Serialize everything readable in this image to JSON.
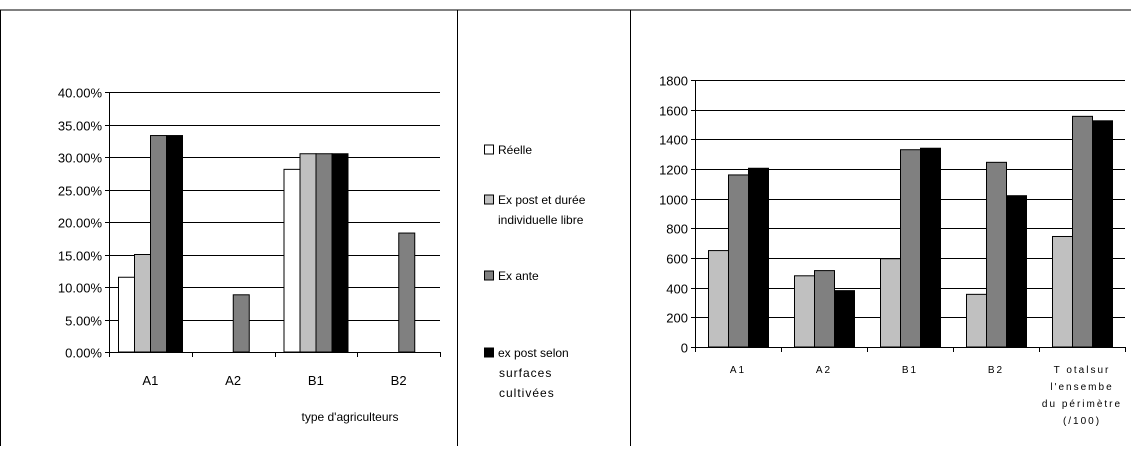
{
  "series_styles": [
    {
      "name": "Réelle",
      "color": "#ffffff"
    },
    {
      "name": "Ex post et durée individuelle libre",
      "color": "#c0c0c0"
    },
    {
      "name": "Ex ante",
      "color": "#808080"
    },
    {
      "name": "ex post selon surfaces cultivées",
      "color": "#000000"
    }
  ],
  "legend": {
    "items": [
      {
        "lines": [
          "Réelle"
        ],
        "color": "#ffffff"
      },
      {
        "lines": [
          "Ex post et durée",
          "individuelle libre"
        ],
        "color": "#c0c0c0"
      },
      {
        "lines": [
          "Ex ante"
        ],
        "color": "#808080"
      },
      {
        "lines": [
          "ex post selon",
          "surfaces",
          "cultivées"
        ],
        "color": "#000000"
      }
    ]
  },
  "chart_data": [
    {
      "type": "bar",
      "categories": [
        "A1",
        "A2",
        "B1",
        "B2"
      ],
      "xlabel": "type d'agriculteurs",
      "ylabel": "",
      "ylim": [
        0,
        0.4
      ],
      "yticks": [
        0,
        0.05,
        0.1,
        0.15,
        0.2,
        0.25,
        0.3,
        0.35,
        0.4
      ],
      "yticklabels": [
        "0.00%",
        "5.00%",
        "10.00%",
        "15.00%",
        "20.00%",
        "25.00%",
        "30.00%",
        "35.00%",
        "40.00%"
      ],
      "grid": true,
      "series": [
        {
          "name": "Réelle",
          "values": [
            0.115,
            0,
            0.281,
            0
          ]
        },
        {
          "name": "Ex post et durée individuelle libre",
          "values": [
            0.15,
            0,
            0.305,
            0
          ]
        },
        {
          "name": "Ex ante",
          "values": [
            0.333,
            0.088,
            0.305,
            0.183
          ]
        },
        {
          "name": "ex post selon surfaces cultivées",
          "values": [
            0.333,
            0,
            0.305,
            0
          ]
        }
      ]
    },
    {
      "type": "bar",
      "categories": [
        "A1",
        "A2",
        "B1",
        "B2",
        "Totalsur l'ensemble du périmètre (/100)"
      ],
      "category_lines": [
        [
          "A1"
        ],
        [
          "A2"
        ],
        [
          "B1"
        ],
        [
          "B2"
        ],
        [
          "T otalsur",
          "l'ensembe",
          "du périmètre",
          "(/100)"
        ]
      ],
      "xlabel": "",
      "ylabel": "",
      "ylim": [
        0,
        1800
      ],
      "yticks": [
        0,
        200,
        400,
        600,
        800,
        1000,
        1200,
        1400,
        1600,
        1800
      ],
      "yticklabels": [
        "0",
        "200",
        "400",
        "600",
        "800",
        "1000",
        "1200",
        "1400",
        "1600",
        "1800"
      ],
      "grid": true,
      "series": [
        {
          "name": "Ex post et durée individuelle libre",
          "values": [
            650,
            480,
            595,
            355,
            745
          ]
        },
        {
          "name": "Ex ante",
          "values": [
            1160,
            515,
            1330,
            1245,
            1555
          ]
        },
        {
          "name": "ex post selon surfaces cultivées",
          "values": [
            1205,
            380,
            1340,
            1020,
            1525
          ]
        }
      ]
    }
  ]
}
